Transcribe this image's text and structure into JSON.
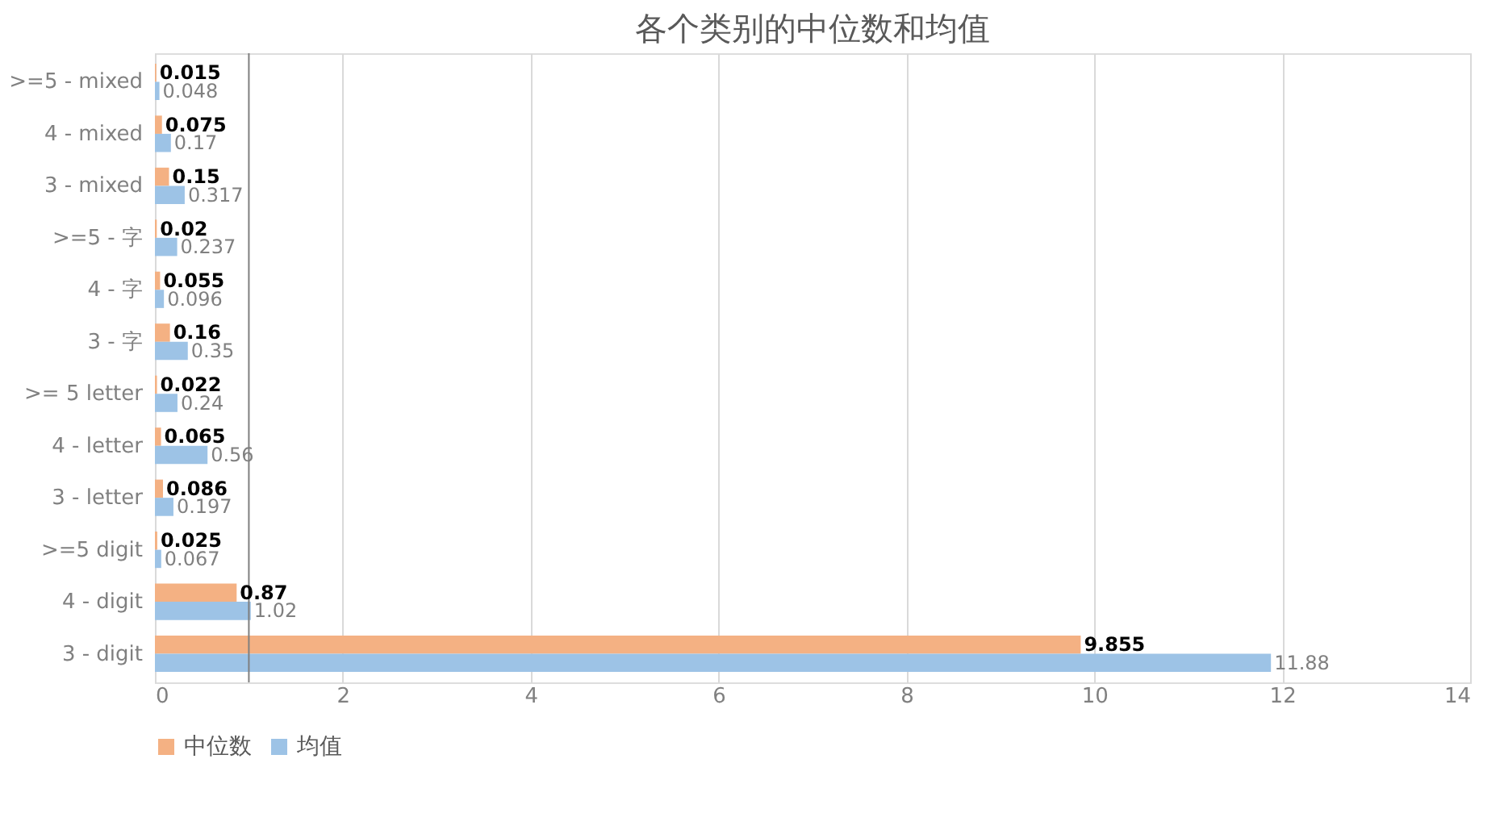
{
  "chart_data": {
    "type": "bar",
    "orientation": "horizontal",
    "title": "各个类别的中位数和均值",
    "categories": [
      ">=5 - mixed",
      "4 - mixed",
      "3 - mixed",
      ">=5 - 字",
      "4 - 字",
      "3 - 字",
      ">= 5  letter",
      "4 - letter",
      "3 - letter",
      ">=5 digit",
      "4 - digit",
      "3 - digit"
    ],
    "series": [
      {
        "name": "中位数",
        "color": "#f4b183",
        "values": [
          0.015,
          0.075,
          0.15,
          0.02,
          0.055,
          0.16,
          0.022,
          0.065,
          0.086,
          0.025,
          0.87,
          9.855
        ]
      },
      {
        "name": "均值",
        "color": "#9dc3e6",
        "values": [
          0.048,
          0.17,
          0.317,
          0.237,
          0.096,
          0.35,
          0.24,
          0.56,
          0.197,
          0.067,
          1.02,
          11.88
        ]
      }
    ],
    "xlim": [
      0,
      14
    ],
    "xticks": [
      0,
      2,
      4,
      6,
      8,
      10,
      12,
      14
    ],
    "grid": "x",
    "legend": "bottom",
    "data_labels": true,
    "ref_lines": [
      {
        "axis": "x",
        "value": 1,
        "color": "#7f7f7f"
      }
    ]
  }
}
